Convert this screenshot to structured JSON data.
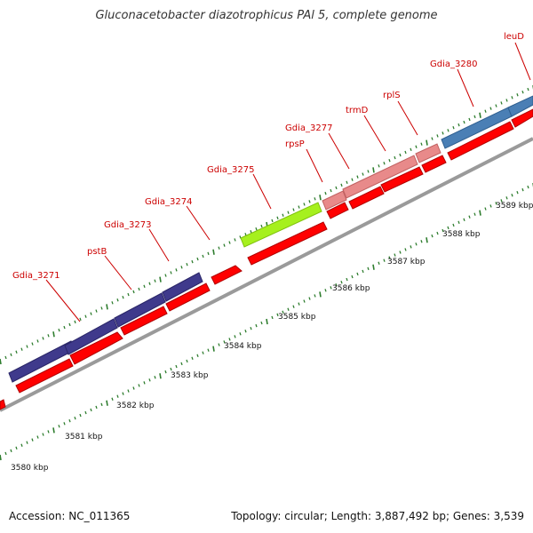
{
  "title": "Gluconacetobacter diazotrophicus PAl 5, complete genome",
  "footer": {
    "accession_label": "Accession:",
    "accession": "NC_011365",
    "topology_label": "Topology:",
    "topology": "circular",
    "length_label": "Length:",
    "length": "3,887,492 bp",
    "genes_label": "Genes:",
    "genes": "3,539"
  },
  "colors": {
    "gene_label": "#cc0000",
    "backbone": "#999999",
    "tick": "#2e7d2e",
    "cds": "#ff0000",
    "purple": "#3f3a8c",
    "green": "#a6f01e",
    "pink": "#e88a8a",
    "blue": "#4a7fb5"
  },
  "axis_ticks": [
    "3580 kbp",
    "3581 kbp",
    "3582 kbp",
    "3583 kbp",
    "3584 kbp",
    "3585 kbp",
    "3586 kbp",
    "3587 kbp",
    "3588 kbp",
    "3589 kbp"
  ],
  "gene_labels": [
    "Gdia_3271",
    "pstB",
    "Gdia_3273",
    "Gdia_3274",
    "Gdia_3275",
    "rpsP",
    "Gdia_3277",
    "trmD",
    "rplS",
    "Gdia_3280",
    "leuD"
  ]
}
